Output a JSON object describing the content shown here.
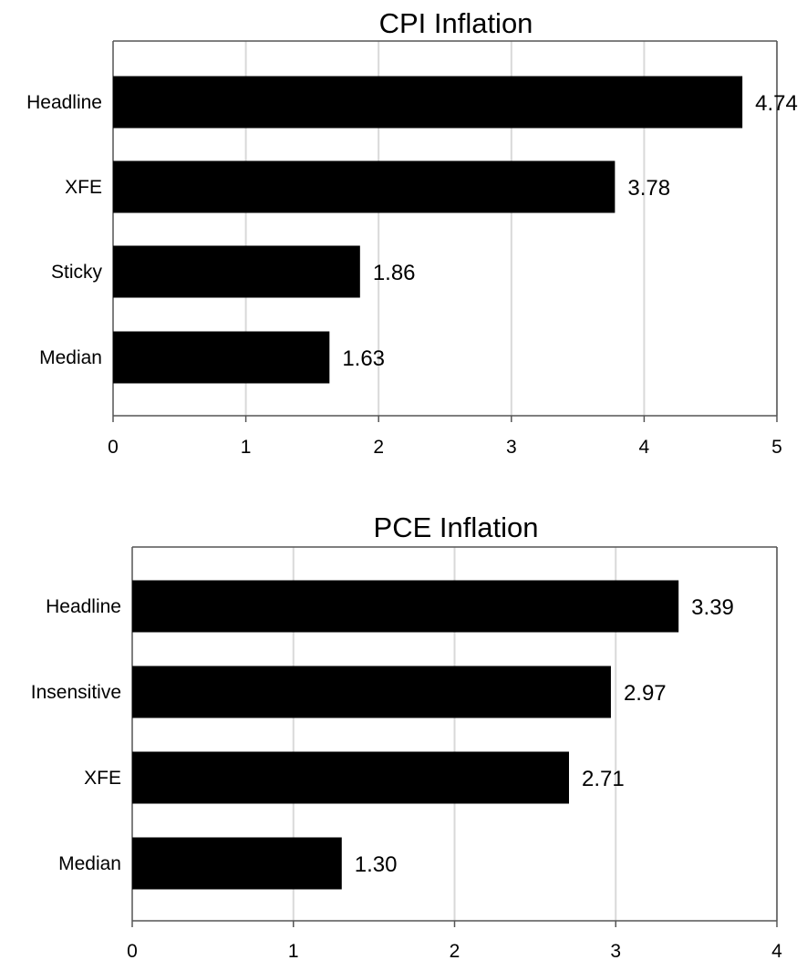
{
  "chart_data": [
    {
      "type": "bar",
      "orientation": "horizontal",
      "title": "CPI Inflation",
      "categories": [
        "Headline",
        "XFE",
        "Sticky",
        "Median"
      ],
      "values": [
        4.74,
        3.78,
        1.86,
        1.63
      ],
      "value_labels": [
        "4.74",
        "3.78",
        "1.86",
        "1.63"
      ],
      "xlim": [
        0,
        5
      ],
      "xticks": [
        "0",
        "1",
        "2",
        "3",
        "4",
        "5"
      ],
      "grid": "vertical",
      "bar_color": "#000000"
    },
    {
      "type": "bar",
      "orientation": "horizontal",
      "title": "PCE Inflation",
      "categories": [
        "Headline",
        "Insensitive",
        "XFE",
        "Median"
      ],
      "values": [
        3.39,
        2.97,
        2.71,
        1.3
      ],
      "value_labels": [
        "3.39",
        "2.97",
        "2.71",
        "1.30"
      ],
      "xlim": [
        0,
        4
      ],
      "xticks": [
        "0",
        "1",
        "2",
        "3",
        "4"
      ],
      "grid": "vertical",
      "bar_color": "#000000"
    }
  ]
}
